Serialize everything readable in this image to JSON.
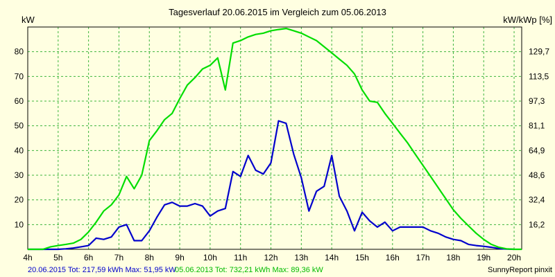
{
  "chart_data": {
    "type": "line",
    "title": "Tagesverlauf 20.06.2015 im Vergleich zum 05.06.2013",
    "ylabel_left": "kW",
    "ylabel_right": "kW/kWp [%]",
    "x_tick_labels": [
      "4h",
      "5h",
      "6h",
      "7h",
      "8h",
      "9h",
      "10h",
      "11h",
      "12h",
      "13h",
      "14h",
      "15h",
      "16h",
      "17h",
      "18h",
      "19h",
      "20h"
    ],
    "y_ticks_left": [
      "10",
      "20",
      "30",
      "40",
      "50",
      "60",
      "70",
      "80"
    ],
    "y_ticks_right": [
      "16,2",
      "32,4",
      "48,6",
      "64,9",
      "81,1",
      "97,3",
      "113,5",
      "129,7"
    ],
    "xlim": [
      4,
      20.25
    ],
    "ylim": [
      0,
      90
    ],
    "grid": true,
    "series": [
      {
        "name": "20.06.2015",
        "color": "#0000cc",
        "x": [
          4,
          4.5,
          5,
          5.25,
          5.5,
          5.75,
          6,
          6.25,
          6.5,
          6.75,
          7,
          7.25,
          7.5,
          7.75,
          8,
          8.25,
          8.5,
          8.75,
          9,
          9.25,
          9.5,
          9.75,
          10,
          10.25,
          10.5,
          10.75,
          11,
          11.25,
          11.5,
          11.75,
          12,
          12.25,
          12.5,
          12.75,
          13,
          13.25,
          13.5,
          13.75,
          14,
          14.25,
          14.5,
          14.75,
          15,
          15.25,
          15.5,
          15.75,
          16,
          16.25,
          16.5,
          16.75,
          17,
          17.25,
          17.5,
          17.75,
          18,
          18.25,
          18.5,
          18.75,
          19,
          19.25,
          19.5,
          19.75,
          20
        ],
        "y": [
          0,
          0,
          0,
          0.2,
          0.5,
          1,
          1.5,
          4.5,
          4,
          5,
          9,
          10,
          3.5,
          3.5,
          7.5,
          13,
          18,
          19,
          17.5,
          17.5,
          18.5,
          17.5,
          13.5,
          15.5,
          16.5,
          31.5,
          29.5,
          38,
          32,
          30.5,
          35,
          52,
          51,
          38.5,
          29,
          15.5,
          23.5,
          25.5,
          38,
          21.5,
          15.5,
          7.5,
          15,
          11.5,
          9,
          11,
          7.5,
          9,
          9,
          9,
          9,
          7.5,
          6.5,
          5,
          4,
          3.5,
          2,
          1.5,
          1.2,
          0.8,
          0.3,
          0.1,
          0
        ]
      },
      {
        "name": "05.06.2013",
        "color": "#00dd00",
        "x": [
          4,
          4.5,
          4.75,
          5,
          5.25,
          5.5,
          5.75,
          6,
          6.25,
          6.5,
          6.75,
          7,
          7.25,
          7.5,
          7.75,
          8,
          8.25,
          8.5,
          8.75,
          9,
          9.25,
          9.5,
          9.75,
          10,
          10.25,
          10.5,
          10.75,
          11,
          11.25,
          11.5,
          11.75,
          12,
          12.25,
          12.5,
          12.75,
          13,
          13.25,
          13.5,
          13.75,
          14,
          14.25,
          14.5,
          14.75,
          15,
          15.25,
          15.5,
          15.75,
          16,
          16.25,
          16.5,
          16.75,
          17,
          17.25,
          17.5,
          17.75,
          18,
          18.25,
          18.5,
          18.75,
          19,
          19.25,
          19.5,
          19.75,
          20,
          20.25
        ],
        "y": [
          0,
          0,
          1,
          1.5,
          2,
          2.5,
          4,
          7,
          11,
          15.5,
          18,
          22,
          29.5,
          24.5,
          30,
          44,
          48,
          52.5,
          55,
          61,
          66.5,
          69.5,
          73,
          74.5,
          77.5,
          64.5,
          83.5,
          84.5,
          86,
          87,
          87.5,
          88.5,
          89,
          89.4,
          88.5,
          87.5,
          86,
          84.5,
          82,
          79.5,
          77,
          74.5,
          71,
          64.5,
          60,
          59.5,
          55,
          51,
          47,
          43,
          38.5,
          34,
          29.5,
          25,
          20.5,
          16,
          12.5,
          9.5,
          6.5,
          4,
          2,
          0.8,
          0.2,
          0,
          0
        ]
      }
    ],
    "footer_series1": "20.06.2015 Tot: 217,59 kWh Max: 51,95 kW",
    "footer_series2": "05.06.2013 Tot: 732,21 kWh Max: 89,36 kW",
    "credit": "SunnyReport pinxit"
  }
}
